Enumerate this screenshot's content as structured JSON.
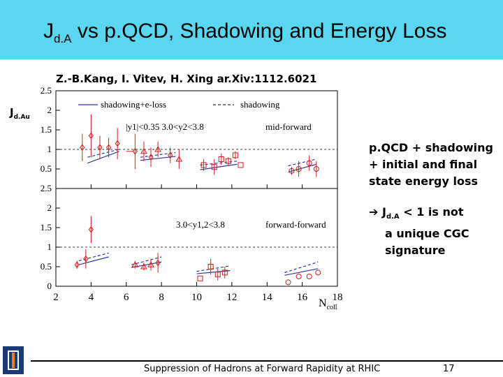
{
  "header": {
    "title_main": "J",
    "title_sub": "d.A",
    "title_rest": " vs p.QCD, Shadowing and Energy Loss"
  },
  "citation": "Z.-B.Kang, I. Vitev, H. Xing ar.Xiv:1112.6021",
  "yaxis": {
    "label_main": "J",
    "label_sub": "d.Au"
  },
  "xaxis": {
    "label_main": "N",
    "label_sub": "coll"
  },
  "side1": {
    "line1": "p.QCD + shadowing",
    "line2": "+ initial and final",
    "line3": "state energy loss"
  },
  "side2": {
    "arrow": "➔",
    "j": "J",
    "sub": "d.A",
    "rest": " < 1 is not",
    "line2": "a unique CGC",
    "line3": "signature"
  },
  "footer": {
    "text": "Suppression of Hadrons at Forward Rapidity at RHIC",
    "page": "17"
  },
  "colors": {
    "title_bg": "#5ad6f0",
    "theory": "#2a3aa0",
    "data": "#d21c1c"
  },
  "chart_data": {
    "type": "scatter",
    "x_ticks": [
      "2",
      "4",
      "6",
      "8",
      "10",
      "12",
      "14",
      "16",
      "18"
    ],
    "xlim": [
      2,
      18
    ],
    "panels": [
      {
        "name": "mid-forward",
        "ylim": [
          0,
          2.5
        ],
        "y_ticks": [
          "0.5",
          "1",
          "1.5",
          "2",
          "2.5"
        ],
        "legend": [
          "shadowing+e-loss",
          "shadowing"
        ],
        "kin_label": "|y1|<0.35    3.0<y2<3.8",
        "region_label": "mid-forward",
        "points": [
          {
            "x": 3.5,
            "y": 1.05,
            "err": 0.35,
            "m": "diamond"
          },
          {
            "x": 4.0,
            "y": 1.35,
            "err": 0.55,
            "m": "diamond"
          },
          {
            "x": 4.5,
            "y": 1.05,
            "err": 0.3,
            "m": "diamond"
          },
          {
            "x": 5.0,
            "y": 1.05,
            "err": 0.25,
            "m": "diamond"
          },
          {
            "x": 5.5,
            "y": 1.15,
            "err": 0.4,
            "m": "diamond"
          },
          {
            "x": 6.2,
            "y": 0.95,
            "err": 0.0,
            "m": "none"
          },
          {
            "x": 6.5,
            "y": 0.95,
            "err": 0.45,
            "m": "diamond"
          },
          {
            "x": 7.0,
            "y": 0.95,
            "err": 0.25,
            "m": "triangle"
          },
          {
            "x": 7.4,
            "y": 0.8,
            "err": 0.25,
            "m": "diamond"
          },
          {
            "x": 7.8,
            "y": 1.0,
            "err": 0.2,
            "m": "triangle"
          },
          {
            "x": 8.5,
            "y": 0.85,
            "err": 0.2,
            "m": "diamond"
          },
          {
            "x": 9.0,
            "y": 0.75,
            "err": 0.25,
            "m": "triangle"
          },
          {
            "x": 10.4,
            "y": 0.6,
            "err": 0.15,
            "m": "square"
          },
          {
            "x": 11.0,
            "y": 0.55,
            "err": 0.2,
            "m": "square"
          },
          {
            "x": 11.4,
            "y": 0.75,
            "err": 0.15,
            "m": "square"
          },
          {
            "x": 11.8,
            "y": 0.7,
            "err": 0.1,
            "m": "square"
          },
          {
            "x": 12.2,
            "y": 0.85,
            "err": 0.1,
            "m": "square"
          },
          {
            "x": 12.5,
            "y": 0.6,
            "err": 0.0,
            "m": "square"
          },
          {
            "x": 15.4,
            "y": 0.45,
            "err": 0.1,
            "m": "circle"
          },
          {
            "x": 15.8,
            "y": 0.5,
            "err": 0.2,
            "m": "circle"
          },
          {
            "x": 16.4,
            "y": 0.65,
            "err": 0.2,
            "m": "circle"
          },
          {
            "x": 16.8,
            "y": 0.5,
            "err": 0.2,
            "m": "circle"
          }
        ],
        "solid": [
          [
            3.8,
            0.65,
            5.6,
            0.95
          ],
          [
            6.8,
            0.72,
            8.8,
            0.82
          ],
          [
            10.2,
            0.48,
            12.3,
            0.62
          ],
          [
            15.2,
            0.42,
            16.8,
            0.62
          ]
        ],
        "dashed": [
          [
            3.8,
            0.8,
            5.6,
            1.0
          ],
          [
            6.8,
            0.8,
            8.8,
            0.92
          ],
          [
            10.2,
            0.6,
            12.3,
            0.7
          ],
          [
            15.2,
            0.58,
            16.8,
            0.75
          ]
        ]
      },
      {
        "name": "forward-forward",
        "ylim": [
          0,
          2.5
        ],
        "y_ticks": [
          "0",
          "0.5",
          "1",
          "1.5",
          "2",
          "2.5"
        ],
        "kin_label": "3.0<y1,2<3.8",
        "region_label": "forward-forward",
        "points": [
          {
            "x": 3.2,
            "y": 0.55,
            "err": 0.1,
            "m": "diamond"
          },
          {
            "x": 3.7,
            "y": 0.7,
            "err": 0.25,
            "m": "diamond"
          },
          {
            "x": 4.0,
            "y": 1.45,
            "err": 0.35,
            "m": "diamond"
          },
          {
            "x": 6.5,
            "y": 0.55,
            "err": 0.1,
            "m": "triangle"
          },
          {
            "x": 7.0,
            "y": 0.5,
            "err": 0.1,
            "m": "triangle"
          },
          {
            "x": 7.4,
            "y": 0.55,
            "err": 0.15,
            "m": "triangle"
          },
          {
            "x": 7.8,
            "y": 0.6,
            "err": 0.25,
            "m": "diamond"
          },
          {
            "x": 10.2,
            "y": 0.2,
            "err": 0.0,
            "m": "square"
          },
          {
            "x": 10.8,
            "y": 0.5,
            "err": 0.2,
            "m": "square"
          },
          {
            "x": 11.2,
            "y": 0.3,
            "err": 0.15,
            "m": "square"
          },
          {
            "x": 11.6,
            "y": 0.35,
            "err": 0.15,
            "m": "square"
          },
          {
            "x": 15.2,
            "y": 0.1,
            "err": 0.0,
            "m": "circle"
          },
          {
            "x": 15.8,
            "y": 0.25,
            "err": 0.0,
            "m": "circle"
          },
          {
            "x": 16.4,
            "y": 0.25,
            "err": 0.0,
            "m": "circle"
          },
          {
            "x": 16.9,
            "y": 0.35,
            "err": 0.0,
            "m": "circle"
          }
        ],
        "solid": [
          [
            3.3,
            0.55,
            5.0,
            0.75
          ],
          [
            6.3,
            0.48,
            8.0,
            0.62
          ],
          [
            10.0,
            0.32,
            11.9,
            0.4
          ],
          [
            15.0,
            0.28,
            16.9,
            0.45
          ]
        ],
        "dashed": [
          [
            3.3,
            0.65,
            5.0,
            0.85
          ],
          [
            6.3,
            0.55,
            8.0,
            0.75
          ],
          [
            10.0,
            0.38,
            11.9,
            0.52
          ],
          [
            15.0,
            0.35,
            16.9,
            0.62
          ]
        ]
      }
    ]
  }
}
